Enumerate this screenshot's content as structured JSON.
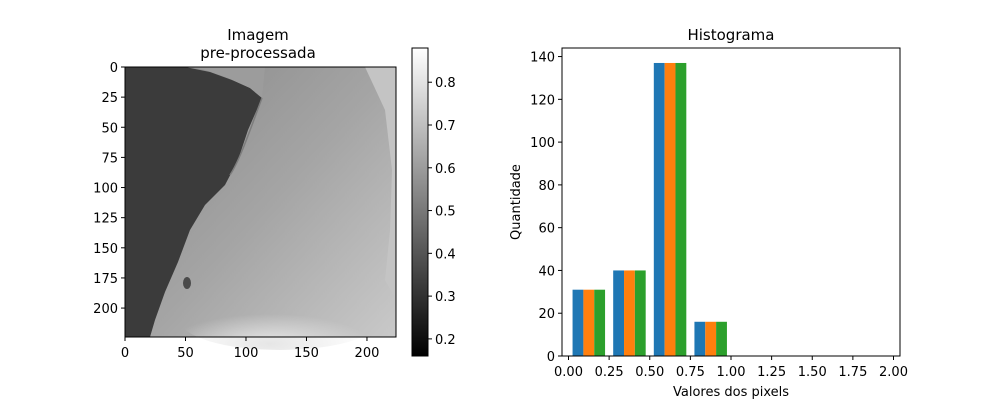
{
  "image_panel": {
    "title_line1": "Imagem",
    "title_line2": "pre-processada",
    "x_ticks": [
      "0",
      "50",
      "100",
      "150",
      "200"
    ],
    "y_ticks": [
      "0",
      "25",
      "50",
      "75",
      "100",
      "125",
      "150",
      "175",
      "200"
    ],
    "x_tick_values": [
      0,
      50,
      100,
      150,
      200
    ],
    "y_tick_values": [
      0,
      25,
      50,
      75,
      100,
      125,
      150,
      175,
      200
    ],
    "extent": [
      0,
      224
    ],
    "colormap": "gray",
    "colorbar": {
      "ticks": [
        "0.2",
        "0.3",
        "0.4",
        "0.5",
        "0.6",
        "0.7",
        "0.8"
      ],
      "tick_values": [
        0.2,
        0.3,
        0.4,
        0.5,
        0.6,
        0.7,
        0.8
      ],
      "range": [
        0.16,
        0.88
      ]
    }
  },
  "chart_data": {
    "type": "bar",
    "title": "Histograma",
    "xlabel": "Valores dos pixels",
    "ylabel": "Quantidade",
    "xlim": [
      -0.04,
      2.04
    ],
    "ylim": [
      0,
      144
    ],
    "x_ticks": [
      "0.00",
      "0.25",
      "0.50",
      "0.75",
      "1.00",
      "1.25",
      "1.50",
      "1.75",
      "2.00"
    ],
    "x_tick_values": [
      0,
      0.25,
      0.5,
      0.75,
      1.0,
      1.25,
      1.5,
      1.75,
      2.0
    ],
    "y_ticks": [
      "0",
      "20",
      "40",
      "60",
      "80",
      "100",
      "120",
      "140"
    ],
    "y_tick_values": [
      0,
      20,
      40,
      60,
      80,
      100,
      120,
      140
    ],
    "bins": [
      0.0,
      0.25,
      0.5,
      0.75
    ],
    "bin_width": 0.25,
    "series": [
      {
        "values": [
          31,
          40,
          137,
          16
        ],
        "color": "#1f77b4"
      },
      {
        "values": [
          31,
          40,
          137,
          16
        ],
        "color": "#ff7f0e"
      },
      {
        "values": [
          31,
          40,
          137,
          16
        ],
        "color": "#2ca02c"
      }
    ]
  }
}
